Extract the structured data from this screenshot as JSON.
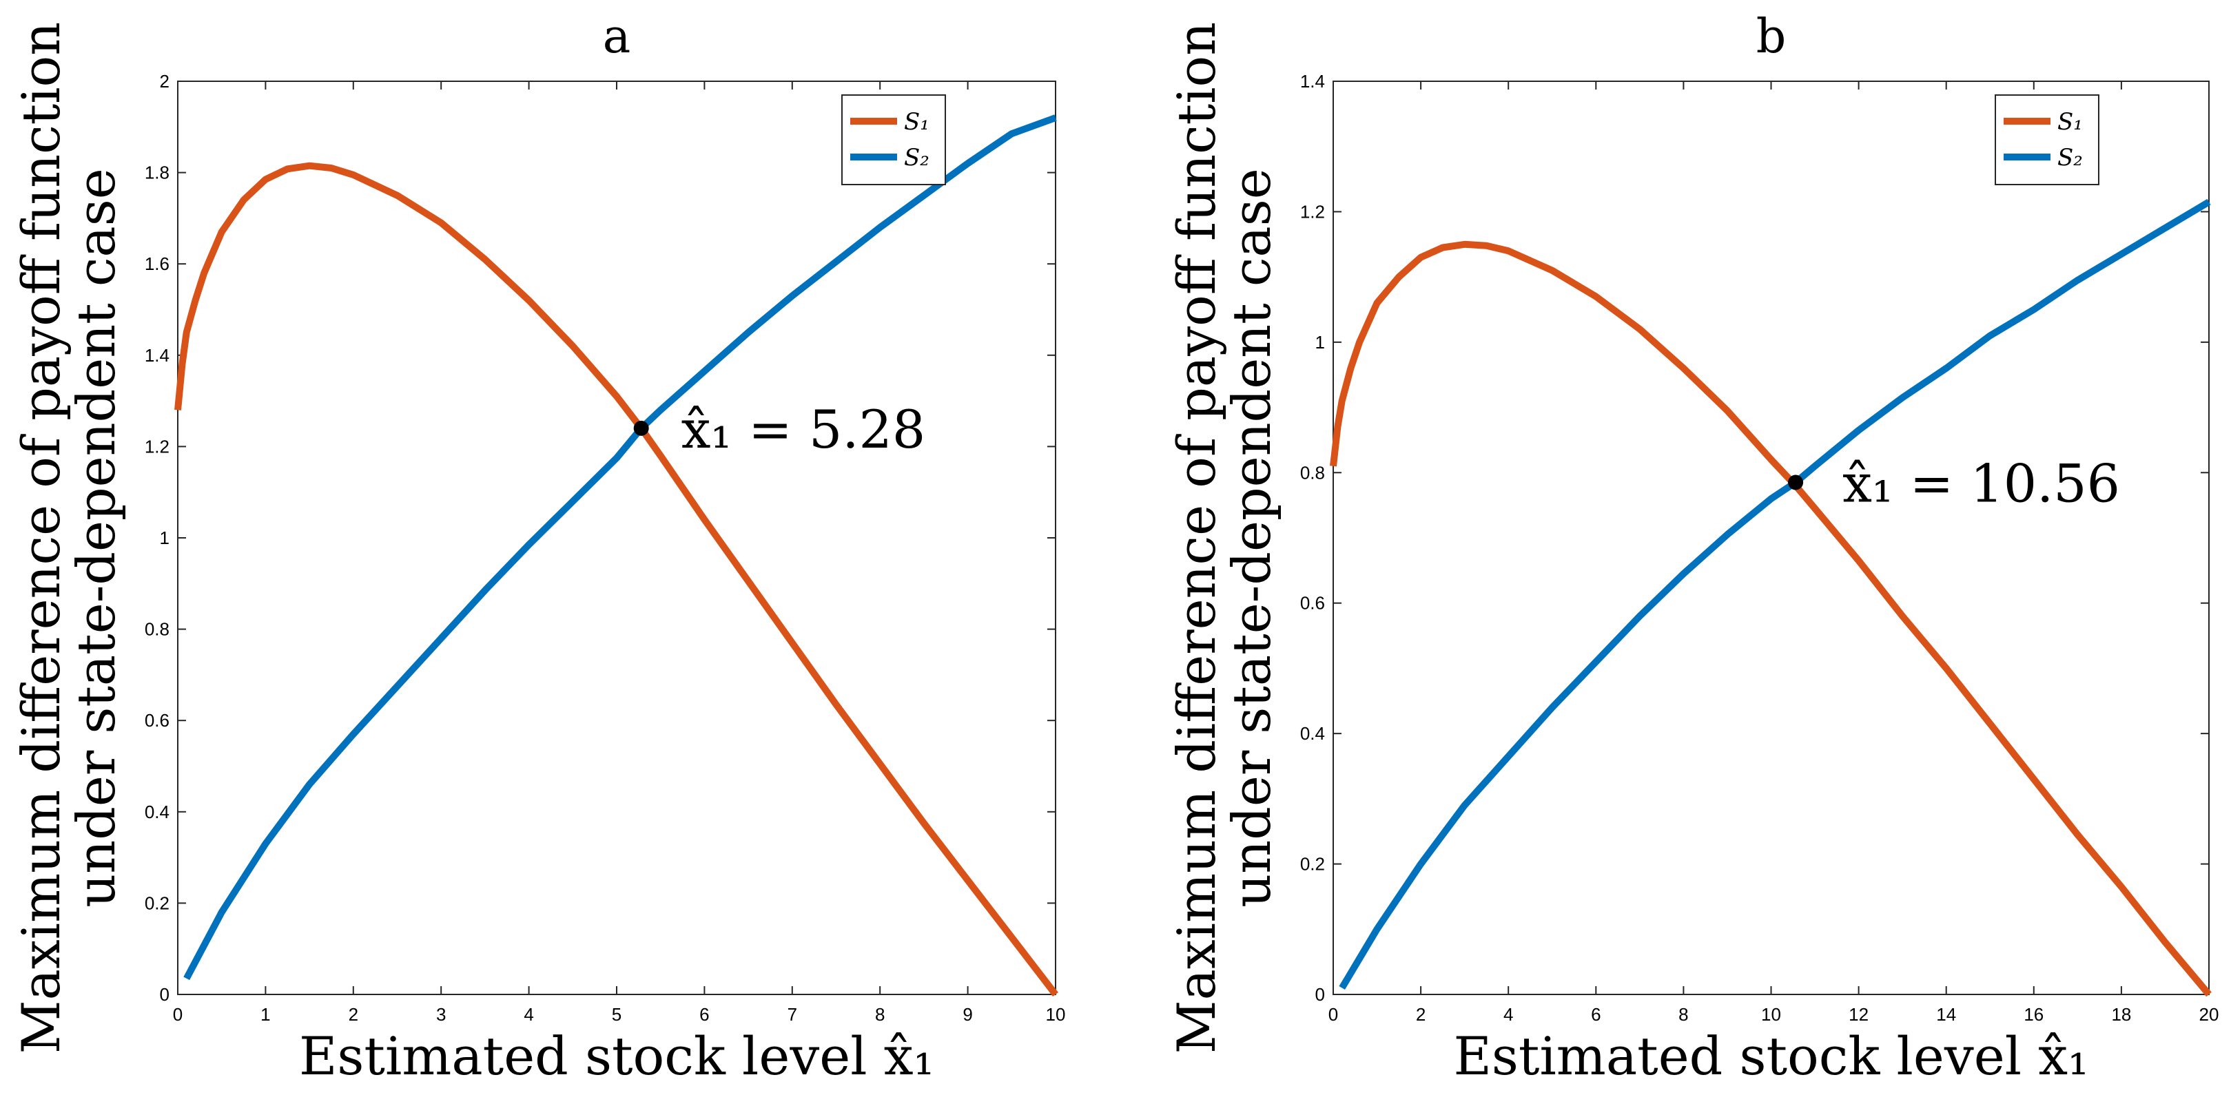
{
  "chart_data": [
    {
      "type": "line",
      "panel": "a",
      "title": "a",
      "xlabel": "Estimated stock level x̂₁",
      "ylabel_lines": [
        "Maximum difference of payoff function",
        "under state-dependent case"
      ],
      "xlim": [
        0,
        10
      ],
      "ylim": [
        0,
        2
      ],
      "xticks": [
        0,
        1,
        2,
        3,
        4,
        5,
        6,
        7,
        8,
        9,
        10
      ],
      "yticks": [
        0,
        0.2,
        0.4,
        0.6,
        0.8,
        1,
        1.2,
        1.4,
        1.6,
        1.8,
        2
      ],
      "xtick_labels": [
        "0",
        "1",
        "2",
        "3",
        "4",
        "5",
        "6",
        "7",
        "8",
        "9",
        "10"
      ],
      "ytick_labels": [
        "0",
        "0.2",
        "0.4",
        "0.6",
        "0.8",
        "1",
        "1.2",
        "1.4",
        "1.6",
        "1.8",
        "2"
      ],
      "legend_position": "top-right",
      "series": [
        {
          "name": "S₁",
          "color": "#d95319",
          "x": [
            0,
            0.05,
            0.1,
            0.2,
            0.3,
            0.5,
            0.75,
            1,
            1.25,
            1.5,
            1.75,
            2,
            2.5,
            3,
            3.5,
            4,
            4.5,
            5,
            5.28,
            5.5,
            6,
            6.5,
            7,
            7.5,
            8,
            8.5,
            9,
            9.5,
            10
          ],
          "y": [
            1.28,
            1.38,
            1.45,
            1.52,
            1.58,
            1.67,
            1.74,
            1.785,
            1.808,
            1.815,
            1.81,
            1.795,
            1.75,
            1.69,
            1.61,
            1.52,
            1.42,
            1.31,
            1.24,
            1.18,
            1.04,
            0.905,
            0.77,
            0.635,
            0.505,
            0.375,
            0.25,
            0.125,
            0
          ]
        },
        {
          "name": "S₂",
          "color": "#0072bd",
          "x": [
            0.1,
            0.5,
            1,
            1.5,
            2,
            2.5,
            3,
            3.5,
            4,
            4.5,
            5,
            5.28,
            5.5,
            6,
            6.5,
            7,
            7.5,
            8,
            8.5,
            9,
            9.5,
            10
          ],
          "y": [
            0.035,
            0.18,
            0.33,
            0.46,
            0.57,
            0.675,
            0.78,
            0.885,
            0.985,
            1.08,
            1.175,
            1.24,
            1.28,
            1.365,
            1.45,
            1.53,
            1.605,
            1.68,
            1.75,
            1.82,
            1.885,
            1.92
          ]
        }
      ],
      "intersection": {
        "x": 5.28,
        "y": 1.24
      },
      "annotation": "x̂₁ = 5.28"
    },
    {
      "type": "line",
      "panel": "b",
      "title": "b",
      "xlabel": "Estimated stock level x̂₁",
      "ylabel_lines": [
        "Maximum difference of payoff function",
        "under state-dependent case"
      ],
      "xlim": [
        0,
        20
      ],
      "ylim": [
        0,
        1.4
      ],
      "xticks": [
        0,
        2,
        4,
        6,
        8,
        10,
        12,
        14,
        16,
        18,
        20
      ],
      "yticks": [
        0,
        0.2,
        0.4,
        0.6,
        0.8,
        1,
        1.2,
        1.4
      ],
      "xtick_labels": [
        "0",
        "2",
        "4",
        "6",
        "8",
        "10",
        "12",
        "14",
        "16",
        "18",
        "20"
      ],
      "ytick_labels": [
        "0",
        "0.2",
        "0.4",
        "0.6",
        "0.8",
        "1",
        "1.2",
        "1.4"
      ],
      "legend_position": "top-right",
      "series": [
        {
          "name": "S₁",
          "color": "#d95319",
          "x": [
            0,
            0.1,
            0.2,
            0.4,
            0.6,
            1,
            1.5,
            2,
            2.5,
            3,
            3.5,
            4,
            5,
            6,
            7,
            8,
            9,
            10,
            10.56,
            11,
            12,
            13,
            14,
            15,
            16,
            17,
            18,
            19,
            20
          ],
          "y": [
            0.81,
            0.87,
            0.91,
            0.96,
            1.0,
            1.06,
            1.1,
            1.13,
            1.145,
            1.15,
            1.148,
            1.14,
            1.11,
            1.07,
            1.02,
            0.96,
            0.895,
            0.82,
            0.78,
            0.745,
            0.665,
            0.58,
            0.5,
            0.415,
            0.33,
            0.245,
            0.165,
            0.08,
            0
          ]
        },
        {
          "name": "S₂",
          "color": "#0072bd",
          "x": [
            0.2,
            1,
            2,
            3,
            4,
            5,
            6,
            7,
            8,
            9,
            10,
            10.56,
            11,
            12,
            13,
            14,
            15,
            16,
            17,
            18,
            19,
            20
          ],
          "y": [
            0.01,
            0.1,
            0.2,
            0.29,
            0.365,
            0.44,
            0.51,
            0.58,
            0.645,
            0.705,
            0.76,
            0.785,
            0.81,
            0.865,
            0.915,
            0.96,
            1.01,
            1.05,
            1.095,
            1.135,
            1.175,
            1.215
          ]
        }
      ],
      "intersection": {
        "x": 10.56,
        "y": 0.785
      },
      "annotation": "x̂₁ = 10.56"
    }
  ]
}
